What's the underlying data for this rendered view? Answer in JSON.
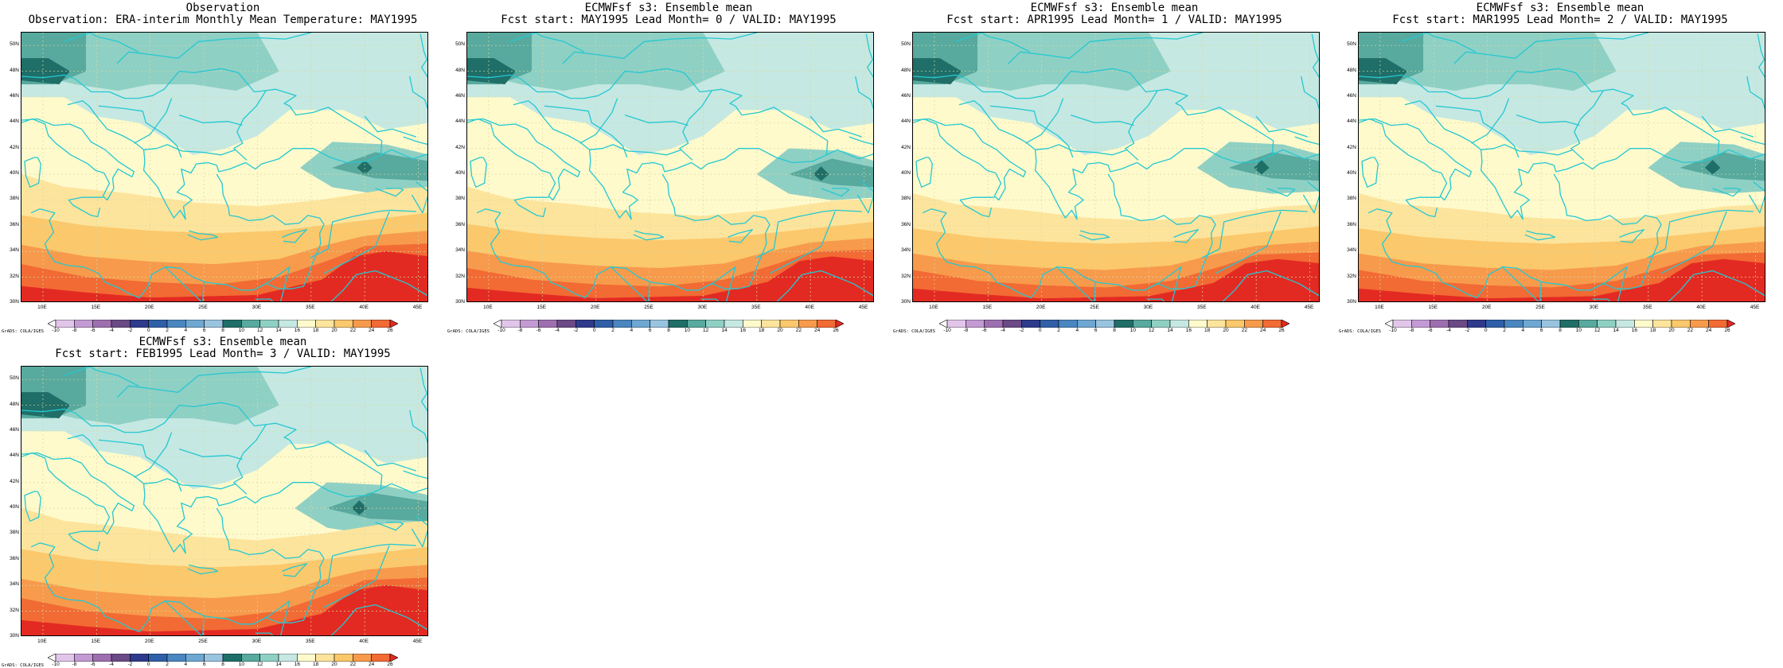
{
  "panels": [
    {
      "title_line1": "Observation",
      "title_line2": "Observation: ERA-interim Monthly Mean Temperature: MAY1995",
      "cold_center": [
        40,
        40.5
      ],
      "warm_extent": 1.0
    },
    {
      "title_line1": "ECMWFsf s3: Ensemble mean",
      "title_line2": "Fcst start: MAY1995  Lead Month= 0 / VALID: MAY1995",
      "cold_center": [
        41,
        40
      ],
      "warm_extent": 0.9
    },
    {
      "title_line1": "ECMWFsf s3: Ensemble mean",
      "title_line2": "Fcst start: APR1995  Lead Month= 1 / VALID: MAY1995",
      "cold_center": [
        40.5,
        40.5
      ],
      "warm_extent": 0.85
    },
    {
      "title_line1": "ECMWFsf s3: Ensemble mean",
      "title_line2": "Fcst start: MAR1995  Lead Month= 2 / VALID: MAY1995",
      "cold_center": [
        41,
        40.5
      ],
      "warm_extent": 0.85
    },
    {
      "title_line1": "ECMWFsf s3: Ensemble mean",
      "title_line2": "Fcst start: FEB1995  Lead Month= 3 / VALID: MAY1995",
      "cold_center": [
        39.5,
        40
      ],
      "warm_extent": 1.0
    }
  ],
  "map_axes": {
    "lon_ticks": [
      "10E",
      "15E",
      "20E",
      "25E",
      "30E",
      "35E",
      "40E",
      "45E"
    ],
    "lat_ticks": [
      "50N",
      "48N",
      "46N",
      "44N",
      "42N",
      "40N",
      "38N",
      "36N",
      "34N",
      "32N",
      "30N"
    ],
    "lon_range": [
      8,
      46
    ],
    "lat_range": [
      30,
      51
    ]
  },
  "colorbar": {
    "labels": [
      "-10",
      "-8",
      "-6",
      "-4",
      "-2",
      "0",
      "2",
      "4",
      "6",
      "8",
      "10",
      "12",
      "14",
      "16",
      "18",
      "20",
      "22",
      "24",
      "26"
    ],
    "colors": [
      "#ffffff",
      "#e2c6ea",
      "#c49ad4",
      "#9e6fb0",
      "#6b4a86",
      "#2e3b8c",
      "#2f5fa8",
      "#4a86c0",
      "#6ea7d2",
      "#98c4e0",
      "#1f6e68",
      "#58a99e",
      "#8fd0c4",
      "#c5e8e2",
      "#fffacc",
      "#fde49c",
      "#fbc86c",
      "#f79a4c",
      "#f26a34",
      "#e32a22"
    ]
  },
  "credit": "GrADS: COLA/IGES",
  "colors": {
    "coast": "#24c8d2",
    "grid": "#d8d8a0"
  }
}
